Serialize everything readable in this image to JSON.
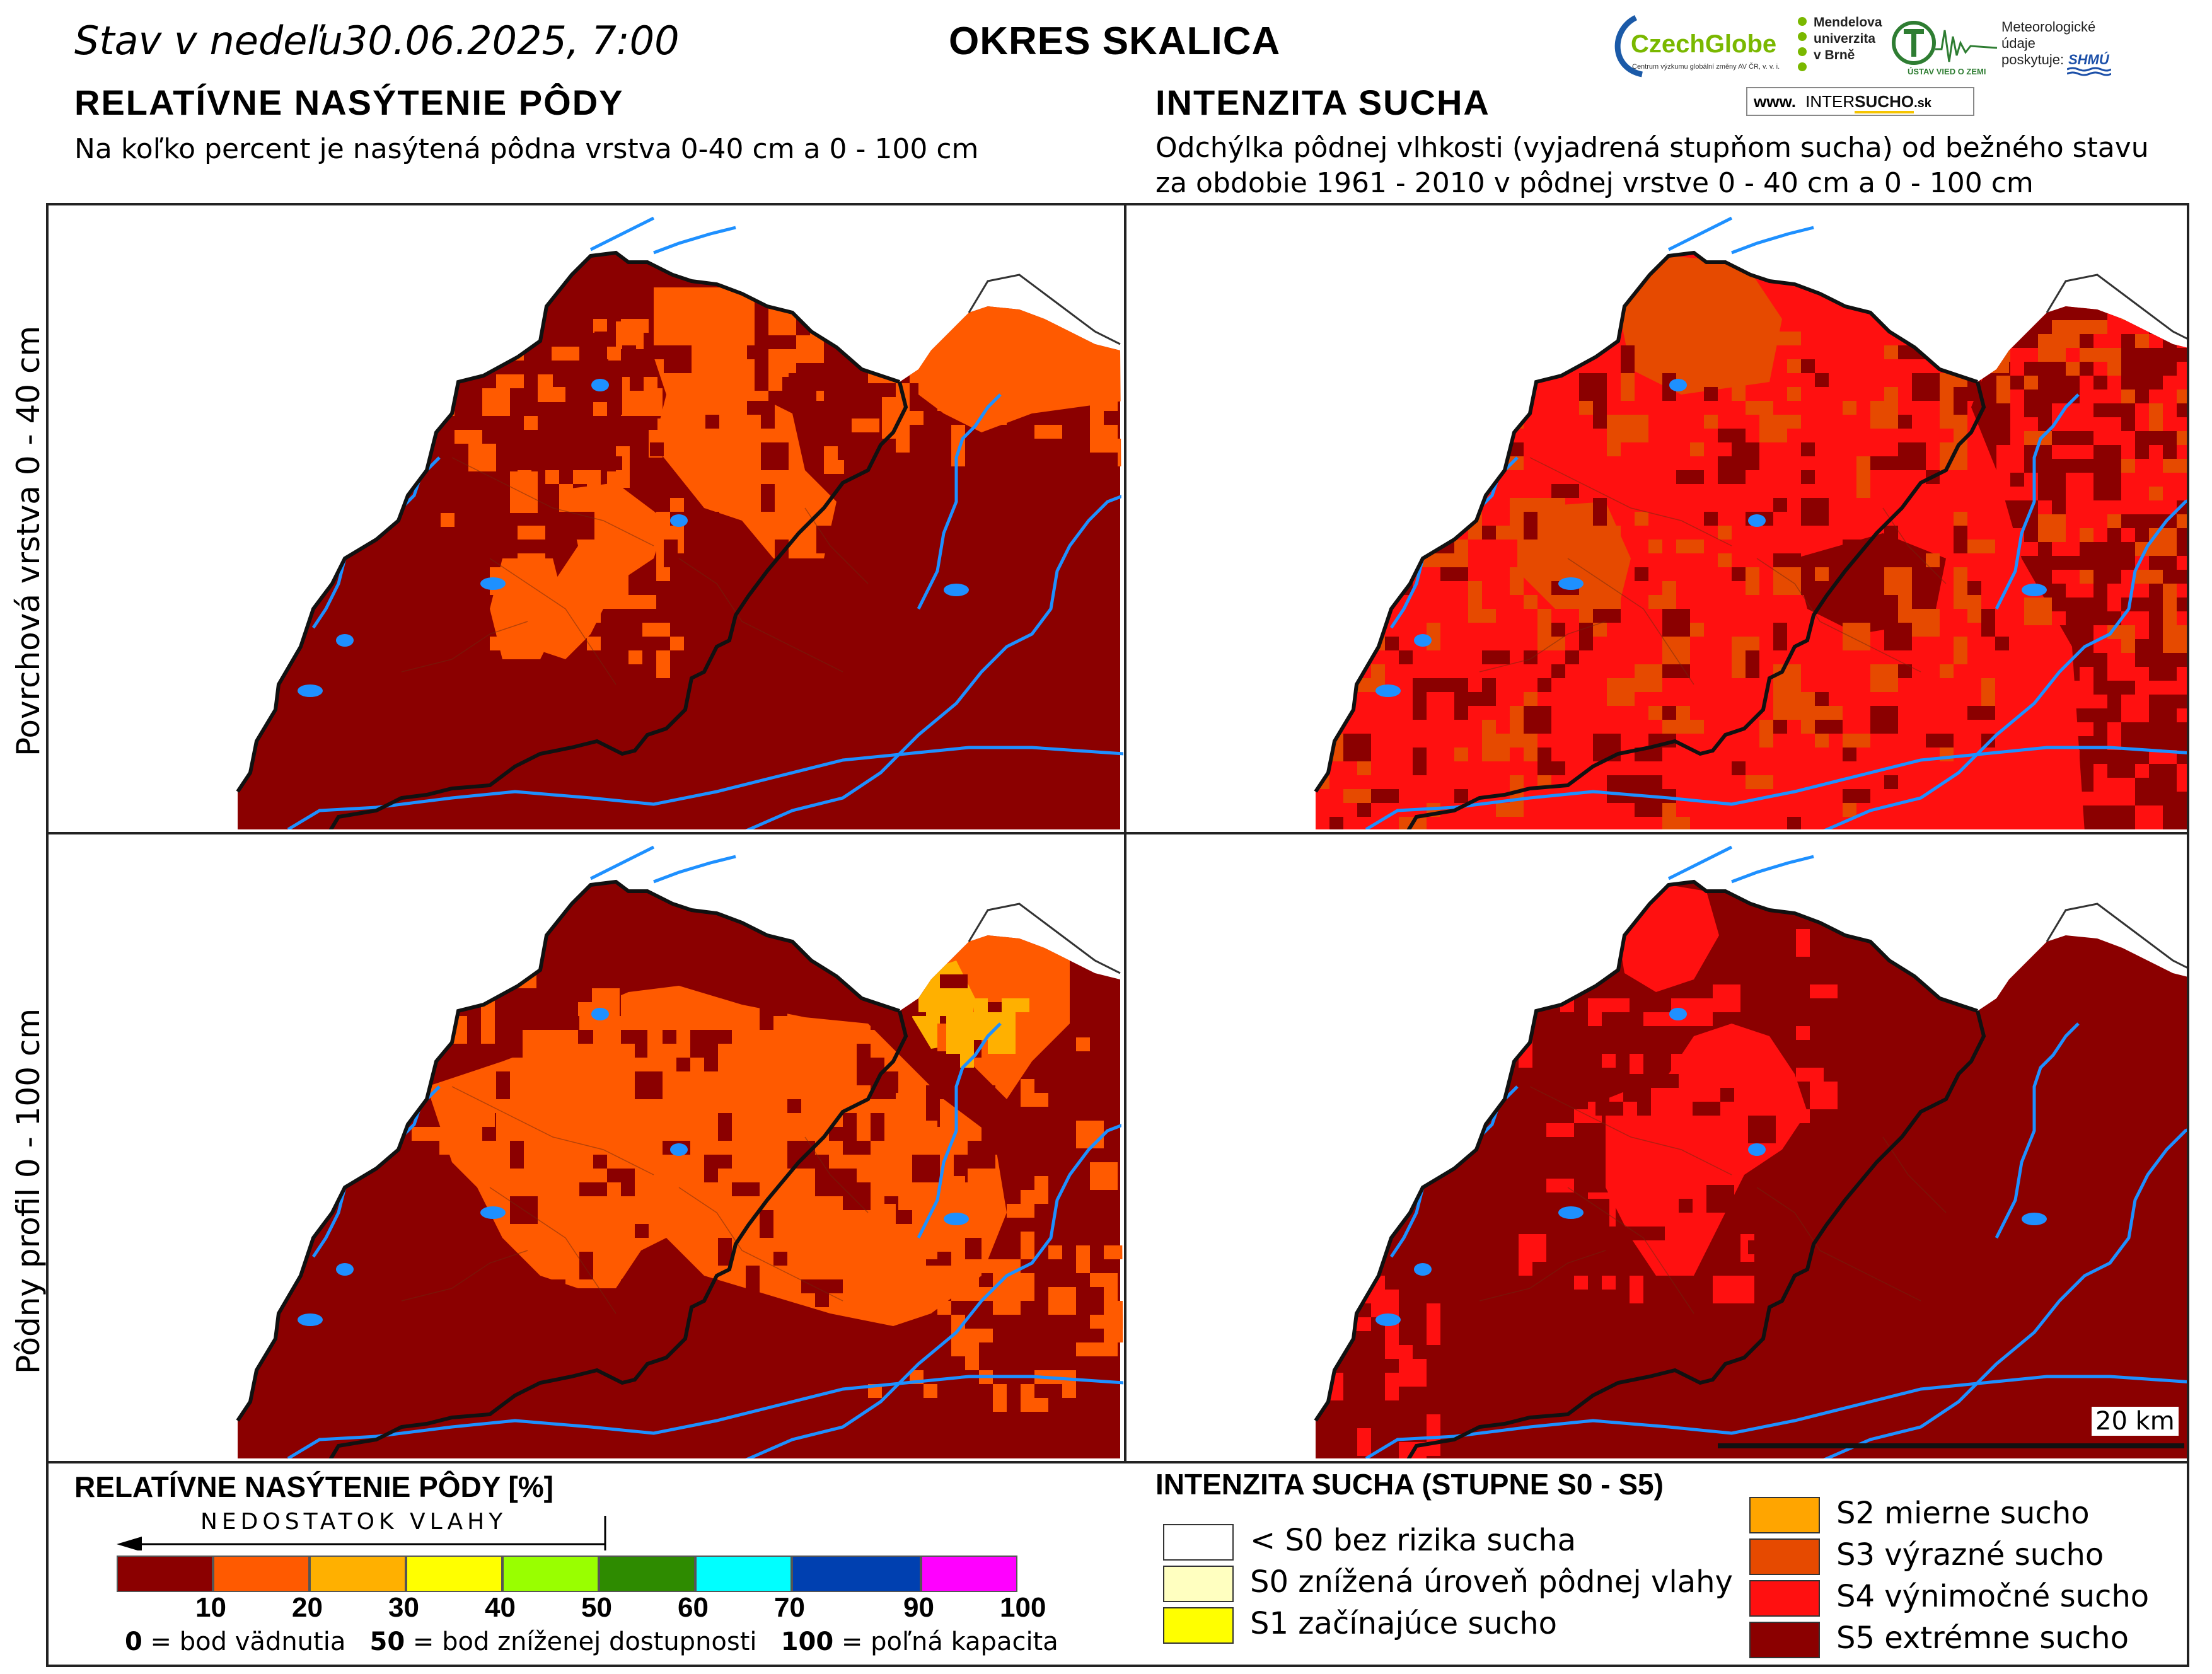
{
  "header": {
    "date_line": "Stav v nedeľu30.06.2025, 7:00",
    "district": "OKRES  SKALICA",
    "left_title": "RELATÍVNE NASÝTENIE PÔDY",
    "left_subtitle": "Na koľko percent je nasýtená pôdna vrstva 0-40 cm a 0 - 100 cm",
    "right_title": "INTENZITA SUCHA",
    "right_subtitle_1": "Odchýlka pôdnej vlhkosti (vyjadrená stupňom sucha) od bežného stavu",
    "right_subtitle_2": "za obdobie 1961 - 2010 v pôdnej vrstve 0 - 40 cm a 0 - 100 cm"
  },
  "logos": {
    "czechglobe": "CzechGlobe",
    "czechglobe_sub": "Centrum výzkumu globální změny AV ČR, v. v. i.",
    "mendel_1": "Mendelova",
    "mendel_2": "univerzita",
    "mendel_3": "v Brně",
    "ustav": "ÚSTAV VIED O ZEMI",
    "meteo_1": "Meteorologické",
    "meteo_2": "údaje",
    "meteo_3": "poskytuje:",
    "shmu": "SHMÚ",
    "intersucho_prefix": "www.",
    "intersucho_inter": "INTER",
    "intersucho_sucho": "SUCHO",
    "intersucho_suffix": ".sk"
  },
  "row_labels": {
    "top": "Povrchová vrstva 0 - 40 cm",
    "bottom": "Pôdny profil 0 - 100 cm"
  },
  "scale_bar": "20 km",
  "saturation_legend": {
    "title": "RELATÍVNE NASÝTENIE PÔDY [%]",
    "arrow_label": "NEDOSTATOK VLAHY",
    "colors": [
      "#8b0000",
      "#ff5a00",
      "#ffb000",
      "#ffff00",
      "#99ff00",
      "#2e8b00",
      "#00ffff",
      "#0040b0",
      "#ff00ff"
    ],
    "ticks": [
      "10",
      "20",
      "30",
      "40",
      "50",
      "60",
      "70",
      "90",
      "100"
    ],
    "note_0_value": "0",
    "note_0_text": " = bod vädnutia",
    "note_50_value": "50",
    "note_50_text": " = bod zníženej dostupnosti",
    "note_100_value": "100",
    "note_100_text": " = poľná kapacita"
  },
  "drought_legend": {
    "title": "INTENZITA SUCHA (STUPNE S0 - S5)",
    "items": [
      {
        "color": "#ffffff",
        "label": "< S0 bez rizika sucha"
      },
      {
        "color": "#ffffc0",
        "label": "S0 znížená úroveň pôdnej vlahy"
      },
      {
        "color": "#ffff00",
        "label": "S1 začínajúce sucho"
      },
      {
        "color": "#ffa500",
        "label": "S2 mierne sucho"
      },
      {
        "color": "#e64a00",
        "label": "S3 výrazné sucho"
      },
      {
        "color": "#ff1010",
        "label": "S4 výnimočné sucho"
      },
      {
        "color": "#8b0000",
        "label": "S5 extrémne sucho"
      }
    ]
  },
  "map_colors": {
    "dark": "#8b0000",
    "orange": "#ff5a00",
    "amber": "#ffb000",
    "s4red": "#ff1010",
    "s3orange": "#e64a00",
    "water": "#1e90ff",
    "border": "#111111"
  }
}
